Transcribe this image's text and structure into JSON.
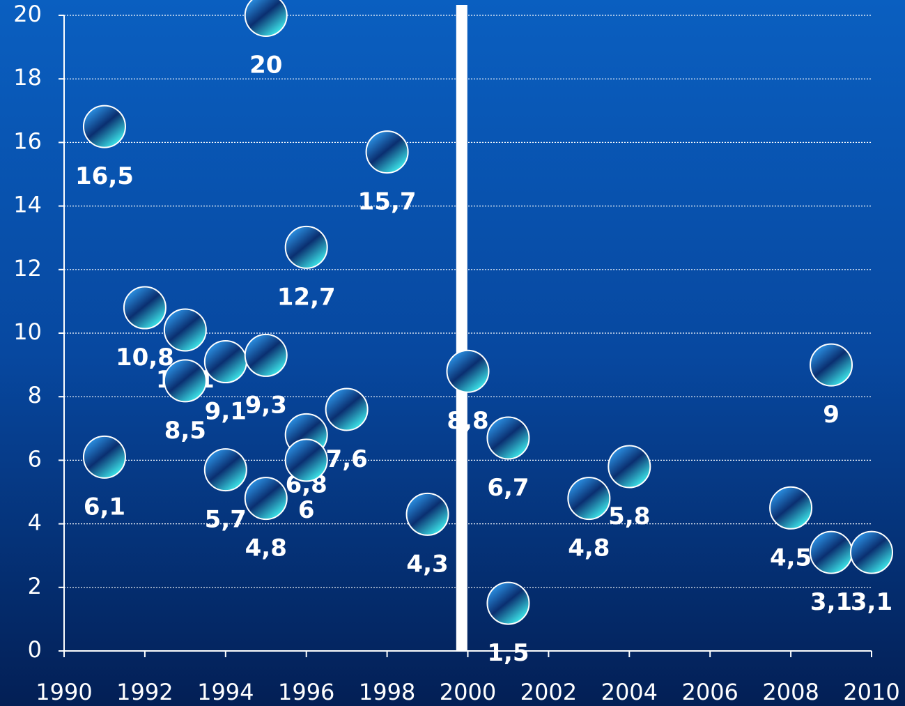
{
  "chart_data": {
    "type": "scatter",
    "series": [
      {
        "color": "#1e7fd0",
        "x": [
          1991,
          1991,
          1992,
          1993,
          1993,
          1994,
          1994,
          1995,
          1995,
          1995,
          1996,
          1996,
          1996,
          1997,
          1998,
          1999,
          2000,
          2001,
          2001,
          2003,
          2004,
          2008,
          2009,
          2009,
          2010
        ],
        "values": [
          16.5,
          6.1,
          10.8,
          10.1,
          8.5,
          9.1,
          5.7,
          20,
          9.3,
          4.8,
          12.7,
          6.8,
          6,
          7.6,
          15.7,
          4.3,
          8.8,
          6.7,
          1.5,
          4.8,
          5.8,
          4.5,
          9,
          3.1,
          3.1
        ],
        "value_labels": [
          "16,5",
          "6,1",
          "10,8",
          "10,1",
          "8,5",
          "9,1",
          "5,7",
          "20",
          "9,3",
          "4,8",
          "12,7",
          "6,8",
          "6",
          "7,6",
          "15,7",
          "4,3",
          "8,8",
          "6,7",
          "1,5",
          "4,8",
          "5,8",
          "4,5",
          "9",
          "3,1",
          "3,1"
        ]
      }
    ],
    "xlim": [
      1990,
      2010
    ],
    "xticks": [
      1990,
      1992,
      1994,
      1996,
      1998,
      2000,
      2002,
      2004,
      2006,
      2008,
      2010
    ],
    "ylim": [
      0,
      20
    ],
    "yticks": [
      0,
      2,
      4,
      6,
      8,
      10,
      12,
      14,
      16,
      18,
      20
    ],
    "grid": true,
    "reference_line_x": 1999.85
  }
}
